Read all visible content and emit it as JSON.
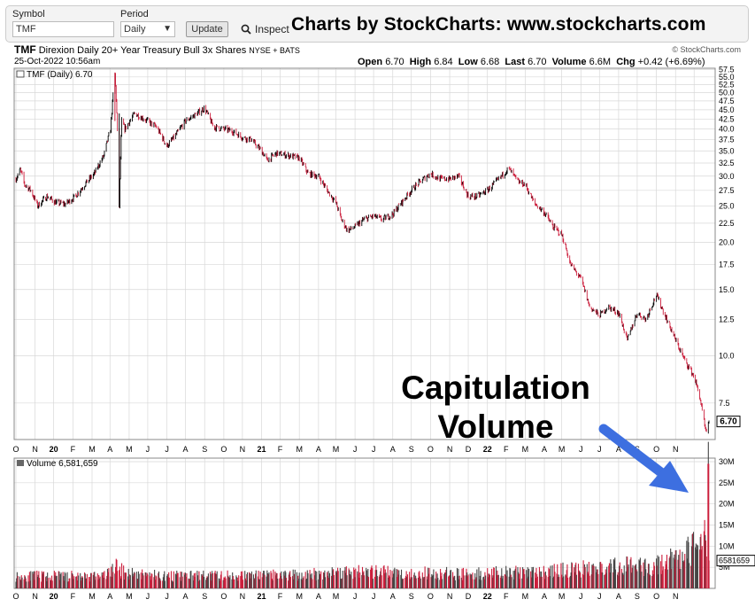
{
  "toolbar": {
    "symbol_label": "Symbol",
    "symbol_value": "TMF",
    "period_label": "Period",
    "period_value": "Daily",
    "update_label": "Update",
    "inspect_label": "Inspect",
    "banner": "Charts by StockCharts:  www.stockcharts.com"
  },
  "header": {
    "ticker": "TMF",
    "name": "Direxion Daily 20+ Year Treasury Bull 3x Shares",
    "exchange": "NYSE + BATS",
    "datetime": "25-Oct-2022 10:56am",
    "copyright": "© StockCharts.com",
    "quote": [
      {
        "k": "Open",
        "v": "6.70"
      },
      {
        "k": "High",
        "v": "6.84"
      },
      {
        "k": "Low",
        "v": "6.68"
      },
      {
        "k": "Last",
        "v": "6.70"
      },
      {
        "k": "Volume",
        "v": "6.6M"
      },
      {
        "k": "Chg",
        "v": "+0.42 (+6.69%)"
      }
    ]
  },
  "annotation": {
    "line1": "Capitulation",
    "line2": "Volume"
  },
  "colors": {
    "up": "#000000",
    "down": "#cc1e3c",
    "arrow": "#3d6fe0",
    "grid": "#d8d8d8"
  },
  "chart_data": [
    {
      "type": "candlestick",
      "panel": "price",
      "legend": "TMF (Daily) 6.70",
      "scale": "log",
      "last_label": "6.70",
      "ylim": [
        6.0,
        58.0
      ],
      "y_ticks": [
        "57.5",
        "55.0",
        "52.5",
        "50.0",
        "47.5",
        "45.0",
        "42.5",
        "40.0",
        "37.5",
        "35.0",
        "32.5",
        "30.0",
        "27.5",
        "25.0",
        "22.5",
        "20.0",
        "17.5",
        "15.0",
        "12.5",
        "10.0",
        "7.5"
      ],
      "x_ticks": [
        "O",
        "N",
        "20",
        "F",
        "M",
        "A",
        "M",
        "J",
        "J",
        "A",
        "S",
        "O",
        "N",
        "21",
        "F",
        "M",
        "A",
        "M",
        "J",
        "J",
        "A",
        "S",
        "O",
        "N",
        "D",
        "22",
        "F",
        "M",
        "A",
        "M",
        "J",
        "J",
        "A",
        "S",
        "O",
        "N"
      ],
      "x_range": [
        "2019-10-01",
        "2022-10-25"
      ],
      "path": [
        [
          "2019-10-01",
          29.5
        ],
        [
          "2019-10-08",
          31.2
        ],
        [
          "2019-10-15",
          28.5
        ],
        [
          "2019-10-25",
          27.5
        ],
        [
          "2019-11-05",
          25.0
        ],
        [
          "2019-11-20",
          26.5
        ],
        [
          "2019-12-05",
          25.5
        ],
        [
          "2019-12-20",
          25.3
        ],
        [
          "2020-01-05",
          26.5
        ],
        [
          "2020-01-20",
          28.5
        ],
        [
          "2020-02-05",
          30.5
        ],
        [
          "2020-02-20",
          34.0
        ],
        [
          "2020-03-02",
          40.0
        ],
        [
          "2020-03-09",
          56.0
        ],
        [
          "2020-03-12",
          44.0
        ],
        [
          "2020-03-16",
          25.0
        ],
        [
          "2020-03-20",
          42.0
        ],
        [
          "2020-03-25",
          40.0
        ],
        [
          "2020-04-10",
          44.0
        ],
        [
          "2020-05-01",
          42.0
        ],
        [
          "2020-05-15",
          40.5
        ],
        [
          "2020-06-01",
          36.0
        ],
        [
          "2020-06-15",
          38.5
        ],
        [
          "2020-07-01",
          42.0
        ],
        [
          "2020-07-20",
          44.0
        ],
        [
          "2020-08-01",
          45.5
        ],
        [
          "2020-08-15",
          40.5
        ],
        [
          "2020-09-01",
          40.0
        ],
        [
          "2020-09-15",
          39.5
        ],
        [
          "2020-10-01",
          38.0
        ],
        [
          "2020-10-15",
          37.5
        ],
        [
          "2020-11-01",
          35.0
        ],
        [
          "2020-11-10",
          33.0
        ],
        [
          "2020-11-25",
          34.5
        ],
        [
          "2020-12-15",
          34.0
        ],
        [
          "2021-01-01",
          33.5
        ],
        [
          "2021-01-15",
          30.5
        ],
        [
          "2021-02-01",
          30.0
        ],
        [
          "2021-02-15",
          27.5
        ],
        [
          "2021-03-01",
          25.5
        ],
        [
          "2021-03-10",
          23.0
        ],
        [
          "2021-03-20",
          21.5
        ],
        [
          "2021-04-01",
          22.0
        ],
        [
          "2021-04-15",
          23.0
        ],
        [
          "2021-05-01",
          23.5
        ],
        [
          "2021-05-15",
          23.0
        ],
        [
          "2021-06-01",
          23.8
        ],
        [
          "2021-06-15",
          25.5
        ],
        [
          "2021-07-01",
          27.5
        ],
        [
          "2021-07-15",
          29.0
        ],
        [
          "2021-08-01",
          30.5
        ],
        [
          "2021-08-15",
          29.5
        ],
        [
          "2021-09-01",
          29.5
        ],
        [
          "2021-09-15",
          30.0
        ],
        [
          "2021-10-01",
          26.5
        ],
        [
          "2021-10-15",
          26.5
        ],
        [
          "2021-11-01",
          27.5
        ],
        [
          "2021-11-20",
          29.5
        ],
        [
          "2021-12-05",
          31.5
        ],
        [
          "2021-12-20",
          29.0
        ],
        [
          "2022-01-01",
          28.5
        ],
        [
          "2022-01-15",
          25.5
        ],
        [
          "2022-02-01",
          24.0
        ],
        [
          "2022-02-15",
          22.0
        ],
        [
          "2022-03-01",
          21.0
        ],
        [
          "2022-03-15",
          17.5
        ],
        [
          "2022-04-01",
          16.0
        ],
        [
          "2022-04-15",
          13.5
        ],
        [
          "2022-05-01",
          12.8
        ],
        [
          "2022-05-15",
          13.5
        ],
        [
          "2022-06-01",
          13.0
        ],
        [
          "2022-06-15",
          11.0
        ],
        [
          "2022-07-01",
          13.0
        ],
        [
          "2022-07-15",
          12.5
        ],
        [
          "2022-08-01",
          14.5
        ],
        [
          "2022-08-15",
          12.8
        ],
        [
          "2022-09-01",
          11.0
        ],
        [
          "2022-09-15",
          9.8
        ],
        [
          "2022-10-01",
          8.8
        ],
        [
          "2022-10-10",
          7.8
        ],
        [
          "2022-10-18",
          6.5
        ],
        [
          "2022-10-21",
          6.2
        ],
        [
          "2022-10-25",
          6.7
        ]
      ]
    },
    {
      "type": "bar",
      "panel": "volume",
      "legend": "Volume 6,581,659",
      "last_label": "6581659",
      "ylim": [
        0,
        30
      ],
      "unit": "M",
      "y_ticks": [
        "30M",
        "25M",
        "20M",
        "15M",
        "10M",
        "5M"
      ],
      "path": [
        [
          "2019-10-01",
          3.5
        ],
        [
          "2020-02-20",
          3.5
        ],
        [
          "2020-03-10",
          6.0
        ],
        [
          "2020-03-25",
          4.5
        ],
        [
          "2020-06-01",
          3.5
        ],
        [
          "2021-01-01",
          3.8
        ],
        [
          "2021-03-15",
          4.8
        ],
        [
          "2021-09-01",
          4.2
        ],
        [
          "2021-12-15",
          4.5
        ],
        [
          "2022-01-15",
          4.5
        ],
        [
          "2022-02-15",
          5.0
        ],
        [
          "2022-04-01",
          5.5
        ],
        [
          "2022-05-15",
          6.0
        ],
        [
          "2022-06-15",
          6.5
        ],
        [
          "2022-07-15",
          6.0
        ],
        [
          "2022-08-15",
          7.5
        ],
        [
          "2022-09-15",
          9.0
        ],
        [
          "2022-09-25",
          12.0
        ],
        [
          "2022-10-05",
          10.5
        ],
        [
          "2022-10-15",
          11.5
        ],
        [
          "2022-10-21",
          16.0
        ],
        [
          "2022-10-24",
          29.5
        ],
        [
          "2022-10-25",
          6.6
        ]
      ]
    }
  ]
}
